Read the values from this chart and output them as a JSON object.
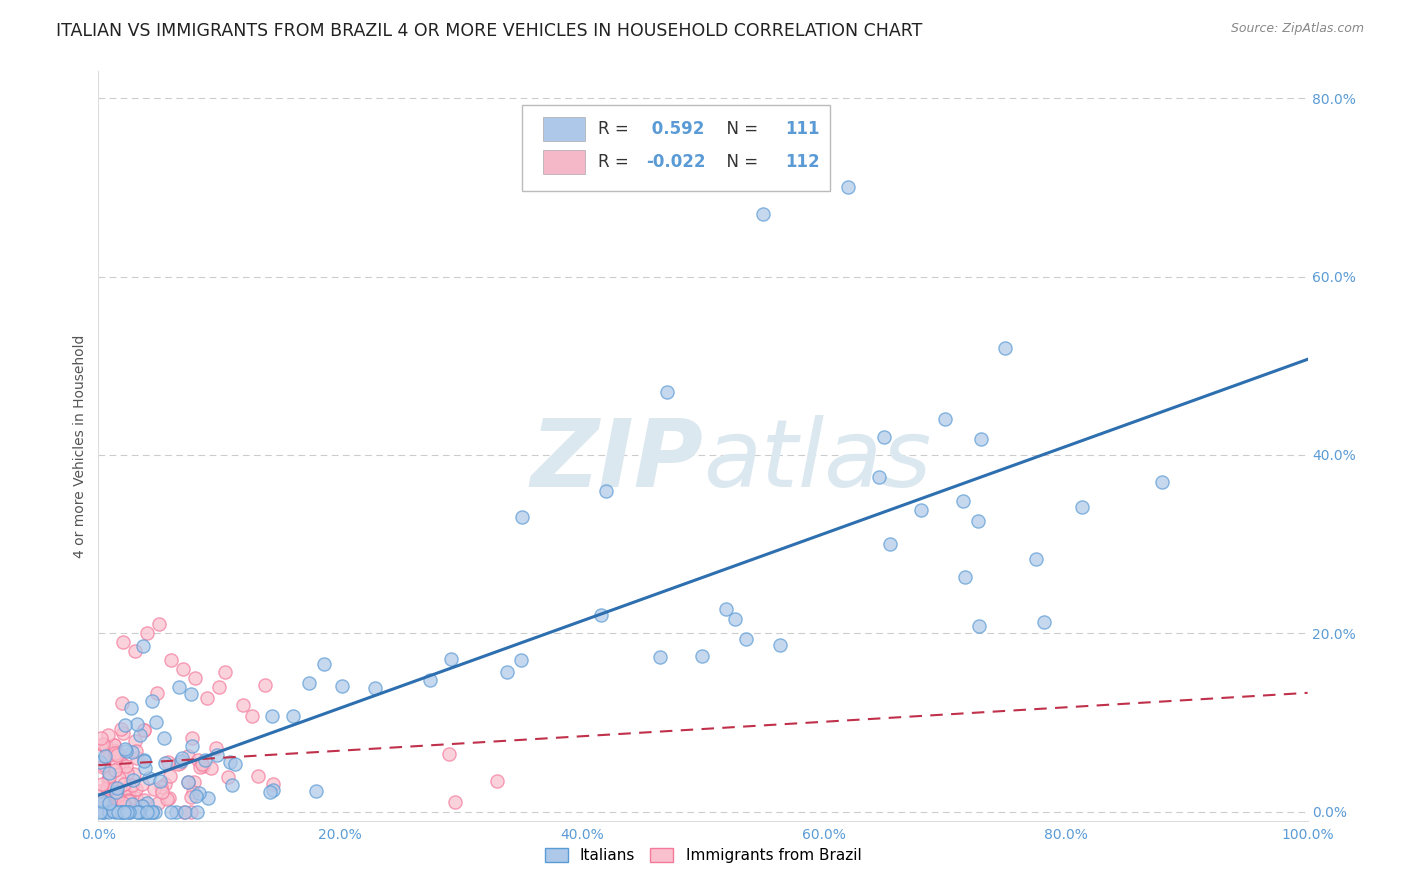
{
  "title": "ITALIAN VS IMMIGRANTS FROM BRAZIL 4 OR MORE VEHICLES IN HOUSEHOLD CORRELATION CHART",
  "source": "Source: ZipAtlas.com",
  "ylabel": "4 or more Vehicles in Household",
  "xlabel": "",
  "xlim": [
    0.0,
    100.0
  ],
  "ylim": [
    -1.0,
    83.0
  ],
  "yticks": [
    0,
    20,
    40,
    60,
    80
  ],
  "ytick_labels": [
    "0.0%",
    "20.0%",
    "40.0%",
    "60.0%",
    "80.0%"
  ],
  "xticks": [
    0,
    20,
    40,
    60,
    80,
    100
  ],
  "xtick_labels": [
    "0.0%",
    "20.0%",
    "40.0%",
    "60.0%",
    "80.0%",
    "100.0%"
  ],
  "legend_entries": [
    {
      "label_r": "R = ",
      "label_rv": " 0.592",
      "label_n": "  N = ",
      "label_nv": "111",
      "color": "#adc8e8"
    },
    {
      "label_r": "R = ",
      "label_rv": "-0.022",
      "label_n": "  N = ",
      "label_nv": "112",
      "color": "#f4b8c8"
    }
  ],
  "italians_edge_color": "#5b9bd5",
  "italians_face_color": "#adc8e8",
  "brazil_edge_color": "#f4799a",
  "brazil_face_color": "#f9c0ce",
  "italians_line_color": "#2e6faf",
  "brazil_line_color": "#c0304a",
  "background_color": "#ffffff",
  "watermark_color": "#dce8f0",
  "tick_color": "#5b9bd5",
  "title_fontsize": 12.5,
  "axis_label_fontsize": 10,
  "tick_fontsize": 10,
  "legend_fontsize": 12,
  "source_fontsize": 9
}
